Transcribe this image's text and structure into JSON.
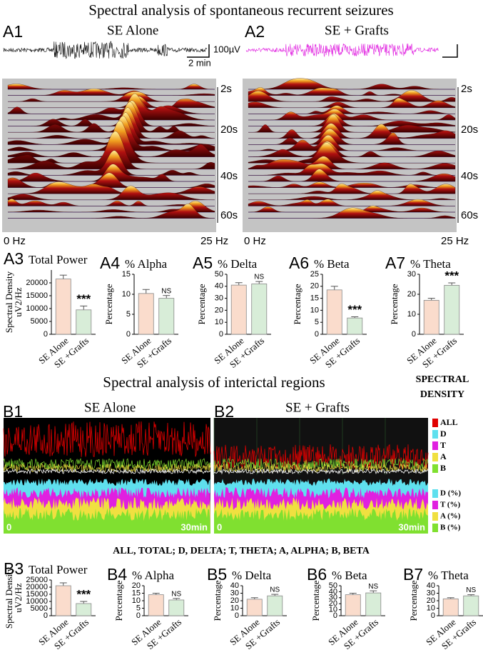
{
  "figure": {
    "title": "Spectral analysis of spontaneous recurrent seizures",
    "panels": [
      {
        "label": "A1",
        "caption": "SE Alone"
      },
      {
        "label": "A2",
        "caption": "SE + Grafts"
      }
    ],
    "scale_voltage": "100µV",
    "scale_time": "2 min",
    "time_labels": [
      "2s",
      "20s",
      "40s",
      "60s"
    ],
    "freq_labels": [
      "0 Hz",
      "25 Hz"
    ],
    "section_b_title": "Spectral analysis of interictal regions",
    "legend_title": [
      "SPECTRAL",
      "DENSITY"
    ],
    "b_panels": [
      {
        "label": "B1",
        "caption": "SE Alone"
      },
      {
        "label": "B2",
        "caption": "SE + Grafts"
      }
    ],
    "legend": [
      {
        "label": "ALL",
        "color": "#e00000"
      },
      {
        "label": "D",
        "color": "#5fe0ee"
      },
      {
        "label": "T",
        "color": "#e020e0"
      },
      {
        "label": "A",
        "color": "#f0e040"
      },
      {
        "label": "B",
        "color": "#80e030"
      }
    ],
    "legend_pct": [
      {
        "label": "D (%)",
        "color": "#5fe0ee"
      },
      {
        "label": "T (%)",
        "color": "#e020e0"
      },
      {
        "label": "A (%)",
        "color": "#f0e040"
      },
      {
        "label": "B (%)",
        "color": "#80e030"
      }
    ],
    "b_axis": [
      "0",
      "30min"
    ],
    "abbreviations": "ALL, TOTAL; D, DELTA; T, THETA; A, ALPHA; B, BETA"
  },
  "chart_data": [
    {
      "type": "bar",
      "panel": "A3",
      "title": "Total Power",
      "y_label": [
        "Spectral Density",
        "uV2/Hz"
      ],
      "categories": [
        "SE Alone",
        "SE +Grafts"
      ],
      "values": [
        21500,
        9500
      ],
      "errors": [
        1500,
        1500
      ],
      "colors": [
        "#fadccc",
        "#d8edd8"
      ],
      "annotation": "***",
      "ylim": [
        0,
        25000
      ],
      "yticks": [
        0,
        5000,
        10000,
        15000,
        20000
      ]
    },
    {
      "type": "bar",
      "panel": "A4",
      "title": "% Alpha",
      "y_label": [
        "Percentage"
      ],
      "categories": [
        "SE Alone",
        "SE +Grafts"
      ],
      "values": [
        10.2,
        9
      ],
      "errors": [
        1,
        0.7
      ],
      "colors": [
        "#fadccc",
        "#d8edd8"
      ],
      "annotation": "NS",
      "ylim": [
        0,
        15
      ],
      "yticks": [
        0,
        5,
        10,
        15
      ]
    },
    {
      "type": "bar",
      "panel": "A5",
      "title": "% Delta",
      "y_label": [
        "Percentage"
      ],
      "categories": [
        "SE Alone",
        "SE +Grafts"
      ],
      "values": [
        41,
        42
      ],
      "errors": [
        2,
        2
      ],
      "colors": [
        "#fadccc",
        "#d8edd8"
      ],
      "annotation": "NS",
      "ylim": [
        0,
        50
      ],
      "yticks": [
        0,
        10,
        20,
        30,
        40,
        50
      ]
    },
    {
      "type": "bar",
      "panel": "A6",
      "title": "% Beta",
      "y_label": [
        "Percentage"
      ],
      "categories": [
        "SE Alone",
        "SE +Grafts"
      ],
      "values": [
        18.5,
        6.8
      ],
      "errors": [
        1.5,
        0.5
      ],
      "colors": [
        "#fadccc",
        "#d8edd8"
      ],
      "annotation": "***",
      "ylim": [
        0,
        25
      ],
      "yticks": [
        0,
        5,
        10,
        15,
        20,
        25
      ]
    },
    {
      "type": "bar",
      "panel": "A7",
      "title": "% Theta",
      "y_label": [
        "Percentage"
      ],
      "categories": [
        "SE Alone",
        "SE +Grafts"
      ],
      "values": [
        17,
        24.5
      ],
      "errors": [
        1,
        1.2
      ],
      "colors": [
        "#fadccc",
        "#d8edd8"
      ],
      "annotation": "***",
      "ylim": [
        0,
        30
      ],
      "yticks": [
        0,
        10,
        20,
        30
      ]
    },
    {
      "type": "bar",
      "panel": "B3",
      "title": "Total Power",
      "y_label": [
        "Spectral Density",
        "uV2/Hz"
      ],
      "categories": [
        "SE Alone",
        "SE +Grafts"
      ],
      "values": [
        21000,
        8500
      ],
      "errors": [
        2000,
        1500
      ],
      "colors": [
        "#fadccc",
        "#d8edd8"
      ],
      "annotation": "***",
      "ylim": [
        0,
        25000
      ],
      "yticks": [
        0,
        5000,
        10000,
        15000,
        20000,
        25000
      ]
    },
    {
      "type": "bar",
      "panel": "B4",
      "title": "% Alpha",
      "y_label": [
        "Percentage"
      ],
      "categories": [
        "SE Alone",
        "SE +Grafts"
      ],
      "values": [
        14,
        10.5
      ],
      "errors": [
        1,
        1
      ],
      "colors": [
        "#fadccc",
        "#d8edd8"
      ],
      "annotation": "NS",
      "ylim": [
        0,
        20
      ],
      "yticks": [
        0,
        5,
        10,
        15,
        20
      ]
    },
    {
      "type": "bar",
      "panel": "B5",
      "title": "% Delta",
      "y_label": [
        "Percentage"
      ],
      "categories": [
        "SE Alone",
        "SE +Grafts"
      ],
      "values": [
        22,
        26.5
      ],
      "errors": [
        2,
        2
      ],
      "colors": [
        "#fadccc",
        "#d8edd8"
      ],
      "annotation": "NS",
      "ylim": [
        0,
        40
      ],
      "yticks": [
        0,
        10,
        20,
        30,
        40
      ]
    },
    {
      "type": "bar",
      "panel": "B6",
      "title": "% Beta",
      "y_label": [
        "Percentage"
      ],
      "categories": [
        "SE Alone",
        "SE +Grafts"
      ],
      "values": [
        35,
        38
      ],
      "errors": [
        2.5,
        3.5
      ],
      "colors": [
        "#fadccc",
        "#d8edd8"
      ],
      "annotation": "NS",
      "ylim": [
        0,
        50
      ],
      "yticks": [
        0,
        10,
        20,
        30,
        40,
        50
      ]
    },
    {
      "type": "bar",
      "panel": "B7",
      "title": "% Theta",
      "y_label": [
        "Percentage"
      ],
      "categories": [
        "SE Alone",
        "SE +Grafts"
      ],
      "values": [
        22.5,
        26.5
      ],
      "errors": [
        1.5,
        1.5
      ],
      "colors": [
        "#fadccc",
        "#d8edd8"
      ],
      "annotation": "NS",
      "ylim": [
        0,
        40
      ],
      "yticks": [
        0,
        10,
        20,
        30,
        40
      ]
    }
  ]
}
